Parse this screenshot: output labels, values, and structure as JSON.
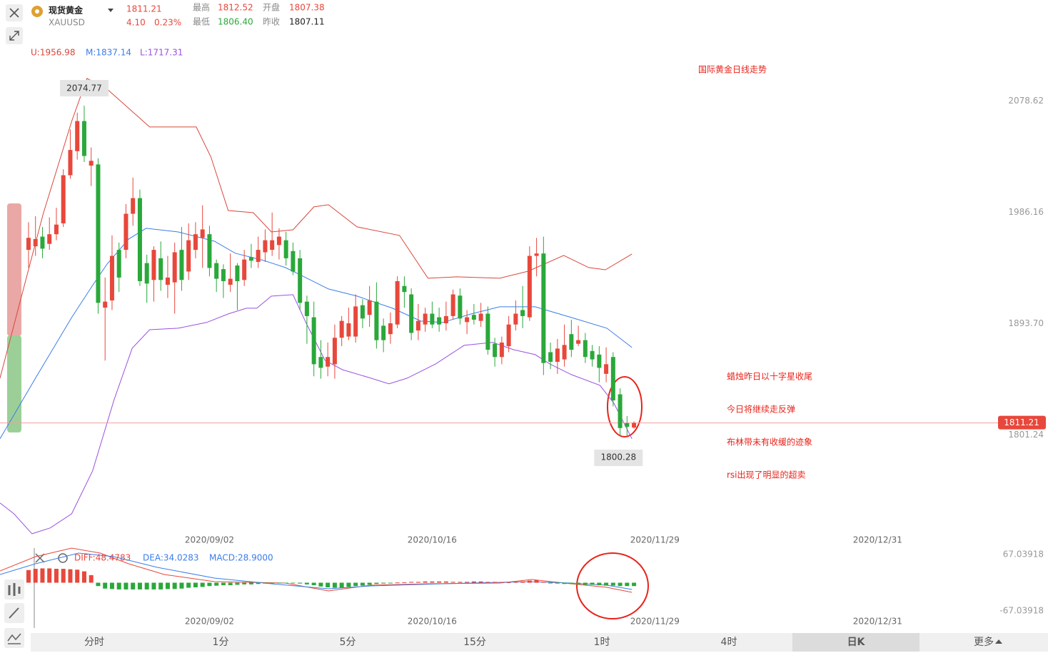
{
  "header": {
    "name": "现货黄金",
    "symbol": "XAUUSD",
    "change": "4.10",
    "change_pct": "0.23%",
    "high_label": "最高",
    "high": "1812.52",
    "open_label": "开盘",
    "open": "1807.38",
    "low_label": "最低",
    "low": "1806.40",
    "prev_close_label": "昨收",
    "prev_close": "1807.11"
  },
  "toolbar": {
    "tabs": [
      "分时",
      "1分",
      "5分",
      "15分",
      "1时",
      "4时",
      "日K",
      "更多"
    ],
    "active": 6
  },
  "chart_data": [
    {
      "type": "candlestick",
      "annotations": [
        "国际黄金日线走势",
        "蜡烛昨日以十字星收尾",
        "今日将继续走反弹",
        "布林带未有收缓的迹象",
        "rsi出现了明显的超卖"
      ],
      "up_color": "#e8473b",
      "down_color": "#2aa83a",
      "open": [
        1955,
        1958,
        1966,
        1960,
        1968,
        1977,
        2017,
        2037,
        2062,
        2025,
        2026,
        1907,
        1913,
        1955,
        1955,
        1985,
        1998,
        1944,
        1930,
        1948,
        1926,
        1928,
        1955,
        1937,
        1955,
        1965,
        1968,
        1944,
        1939,
        1926,
        1942,
        1930,
        1949,
        1945,
        1953,
        1955,
        1959,
        1963,
        1954,
        1948,
        1912,
        1899,
        1866,
        1858,
        1860,
        1882,
        1883,
        1883,
        1909,
        1901,
        1912,
        1892,
        1885,
        1893,
        1925,
        1918,
        1888,
        1893,
        1902,
        1899,
        1894,
        1900,
        1917,
        1895,
        1901,
        1896,
        1902,
        1877,
        1866,
        1875,
        1893,
        1905,
        1899,
        1950,
        1952,
        1870,
        1862,
        1864,
        1885,
        1877,
        1880,
        1871,
        1868,
        1852,
        1866,
        1835,
        1811,
        1807.38
      ],
      "high": [
        1978,
        1983,
        1974,
        1982,
        1990,
        2022,
        2055,
        2069,
        2074.77,
        2040,
        2031,
        1932,
        1967,
        1961,
        1993,
        2015,
        2005,
        1951,
        1958,
        1962,
        1950,
        1961,
        1974,
        1977,
        1978,
        1992,
        1975,
        1947,
        1943,
        1952,
        1944,
        1955,
        1960,
        1966,
        1972,
        1986,
        1973,
        1970,
        1961,
        1955,
        1917,
        1912,
        1880,
        1878,
        1893,
        1900,
        1907,
        1918,
        1914,
        1925,
        1928,
        1898,
        1903,
        1933,
        1933,
        1923,
        1910,
        1907,
        1912,
        1907,
        1912,
        1922,
        1923,
        1905,
        1910,
        1911,
        1908,
        1882,
        1883,
        1900,
        1913,
        1925,
        1958,
        1965,
        1966,
        1878,
        1881,
        1893,
        1897,
        1892,
        1886,
        1876,
        1875,
        1874,
        1870,
        1840,
        1817,
        1812.52
      ],
      "low": [
        1940,
        1950,
        1948,
        1955,
        1963,
        1974,
        2014,
        2030,
        2028,
        2008,
        1902,
        1863,
        1905,
        1920,
        1948,
        1975,
        1925,
        1911,
        1912,
        1921,
        1915,
        1902,
        1921,
        1930,
        1948,
        1940,
        1933,
        1920,
        1915,
        1920,
        1905,
        1925,
        1940,
        1940,
        1945,
        1950,
        1947,
        1942,
        1934,
        1905,
        1877,
        1850,
        1848,
        1850,
        1848,
        1875,
        1880,
        1878,
        1890,
        1891,
        1873,
        1870,
        1877,
        1890,
        1907,
        1880,
        1880,
        1887,
        1890,
        1887,
        1888,
        1897,
        1893,
        1885,
        1893,
        1891,
        1868,
        1858,
        1860,
        1870,
        1888,
        1890,
        1896,
        1933,
        1851,
        1856,
        1852,
        1858,
        1866,
        1875,
        1861,
        1858,
        1845,
        1845,
        1825,
        1801,
        1800.28,
        1806.4
      ],
      "close": [
        1965,
        1964,
        1956,
        1968,
        1976,
        2017,
        2038,
        2062,
        2033,
        2029,
        1911,
        1912,
        1950,
        1932,
        1985,
        1998,
        1929,
        1927,
        1955,
        1930,
        1932,
        1953,
        1930,
        1963,
        1968,
        1972,
        1940,
        1931,
        1929,
        1931,
        1929,
        1947,
        1946,
        1955,
        1963,
        1963,
        1966,
        1948,
        1937,
        1911,
        1900,
        1860,
        1857,
        1866,
        1882,
        1896,
        1894,
        1908,
        1898,
        1913,
        1880,
        1880,
        1894,
        1929,
        1920,
        1886,
        1896,
        1902,
        1893,
        1893,
        1900,
        1918,
        1898,
        1899,
        1897,
        1902,
        1872,
        1866,
        1878,
        1893,
        1902,
        1900,
        1950,
        1952,
        1861,
        1862,
        1873,
        1876,
        1872,
        1880,
        1866,
        1864,
        1857,
        1860,
        1830,
        1807,
        1808,
        1811.21
      ],
      "xlim": [
        -4.1,
        139
      ],
      "xticks": [
        {
          "value": 26,
          "label": "2020/09/02"
        },
        {
          "value": 58,
          "label": "2020/10/16"
        },
        {
          "value": 90,
          "label": "2020/11/29"
        },
        {
          "value": 122,
          "label": "2020/12/31"
        }
      ],
      "ylim": [
        1712,
        2127
      ],
      "yticks": [
        2078.62,
        1986.16,
        {
          "value": 1893.7,
          "label": "1893.70"
        },
        1801.24
      ],
      "series": [
        {
          "name": "U:1956.98",
          "color": "#d9473b",
          "x": [
            -4.1,
            2.1,
            6.2,
            8.4,
            11.3,
            17.4,
            24.1,
            26.2,
            28.7,
            32.3,
            34.9,
            38,
            41,
            43.1,
            47.2,
            53.3,
            57.4,
            61.5,
            67.7,
            71.8,
            76.9,
            80.5,
            82.9,
            86.7
          ],
          "values": [
            1848.4,
            1984.8,
            2061.8,
            2097.4,
            2088.5,
            2057.1,
            2057.1,
            2032.2,
            1987.7,
            1985.9,
            1969.9,
            1971.7,
            1990.7,
            1992.5,
            1974.1,
            1967,
            1931.4,
            1932.6,
            1931.4,
            1937.3,
            1950.4,
            1940.3,
            1938.5,
            1951.6
          ]
        },
        {
          "name": "M:1837.14",
          "color": "#3b7de9",
          "x": [
            -4.1,
            1,
            6.2,
            9.2,
            11.3,
            14.4,
            16.9,
            21.5,
            26.7,
            29.7,
            33.8,
            36.9,
            39,
            43.1,
            47.2,
            52.3,
            56.4,
            59.5,
            63.6,
            67.7,
            72.8,
            78,
            83.1,
            86.7
          ],
          "values": [
            1798.1,
            1848.4,
            1898.8,
            1925.5,
            1943.3,
            1964,
            1972.9,
            1969.9,
            1962.2,
            1952.2,
            1946.2,
            1940.3,
            1934.4,
            1922.5,
            1916.6,
            1906.5,
            1895.8,
            1894.7,
            1901.8,
            1907.7,
            1907.7,
            1898.8,
            1889.9,
            1873.9
          ]
        },
        {
          "name": "L:1717.31",
          "color": "#9b51e0",
          "x": [
            -4.1,
            -2.1,
            0.5,
            3.1,
            6.2,
            9.2,
            12.3,
            14.9,
            17.4,
            21.5,
            25.6,
            28.7,
            31.3,
            32.8,
            34.9,
            38,
            40,
            42.6,
            45.1,
            49.2,
            51.8,
            54.4,
            58.5,
            62.6,
            66.7,
            69.7,
            72.8,
            74.9,
            78,
            82.1,
            84.1,
            86.7
          ],
          "values": [
            1744.7,
            1735.8,
            1719.2,
            1724,
            1735.8,
            1771.4,
            1830.7,
            1873.3,
            1888.7,
            1889.9,
            1894.7,
            1901.8,
            1906.5,
            1906.5,
            1916.6,
            1917.8,
            1892.9,
            1863.2,
            1855.5,
            1848.4,
            1843.7,
            1848.4,
            1860.3,
            1875.7,
            1878.1,
            1872.1,
            1868,
            1860.3,
            1851.4,
            1842.5,
            1827.7,
            1798.1
          ]
        }
      ]
    },
    {
      "type": "macd",
      "ylim": [
        -87.4,
        87.4
      ],
      "yticks": [
        67.03918,
        -67.03918
      ],
      "series": [
        {
          "name": "DIFF:48.4783",
          "color": "#e8473b",
          "x": [
            -4.1,
            1,
            6.2,
            10.3,
            14.4,
            19.5,
            26.7,
            36.9,
            43.1,
            49.2,
            57.4,
            67.7,
            72.3,
            78,
            83.1,
            86.7
          ],
          "values": [
            28,
            61.9,
            82.3,
            70.4,
            45,
            19.5,
            2.5,
            -0.8,
            -19.5,
            -5.9,
            -2.5,
            -0.8,
            7.6,
            -2.5,
            -11,
            -22.9
          ]
        },
        {
          "name": "DEA:34.0283",
          "color": "#3b7de9",
          "x": [
            -4.1,
            1,
            7.2,
            12.3,
            18.5,
            26.7,
            34.9,
            43.1,
            49.2,
            59.5,
            71.8,
            78,
            83.1,
            86.7
          ],
          "values": [
            19.5,
            45,
            70.4,
            61.9,
            36.5,
            11,
            -2.5,
            -14.4,
            -7.6,
            -2.5,
            2.5,
            -0.8,
            -5.9,
            -16.1
          ]
        },
        {
          "name": "MACD:28.9000",
          "color": "#3b7de9",
          "up_color": "#e8473b",
          "down_color": "#2aa83a",
          "values": [
            30,
            33,
            34,
            34,
            33,
            33,
            32,
            31,
            27,
            18,
            -8,
            -14,
            -15,
            -16,
            -16,
            -16,
            -16,
            -16,
            -16,
            -16,
            -15,
            -15,
            -14,
            -12,
            -11,
            -10,
            -8,
            -7,
            -6,
            -6,
            -5,
            -4,
            -4,
            -3,
            -2,
            -2,
            -1,
            -1,
            -1,
            -2,
            -4,
            -6,
            -9,
            -11,
            -12,
            -12,
            -10,
            -8,
            -7,
            -5,
            -3,
            -2,
            -1,
            0.5,
            1,
            2,
            2,
            3,
            3,
            3,
            3,
            2,
            2,
            2,
            3,
            3,
            2,
            2,
            1,
            1,
            2,
            3,
            5,
            6,
            2,
            -1,
            -2,
            -3,
            -3,
            -4,
            -5,
            -5,
            -6,
            -7,
            -7,
            -8,
            -8,
            -8
          ]
        }
      ]
    }
  ]
}
